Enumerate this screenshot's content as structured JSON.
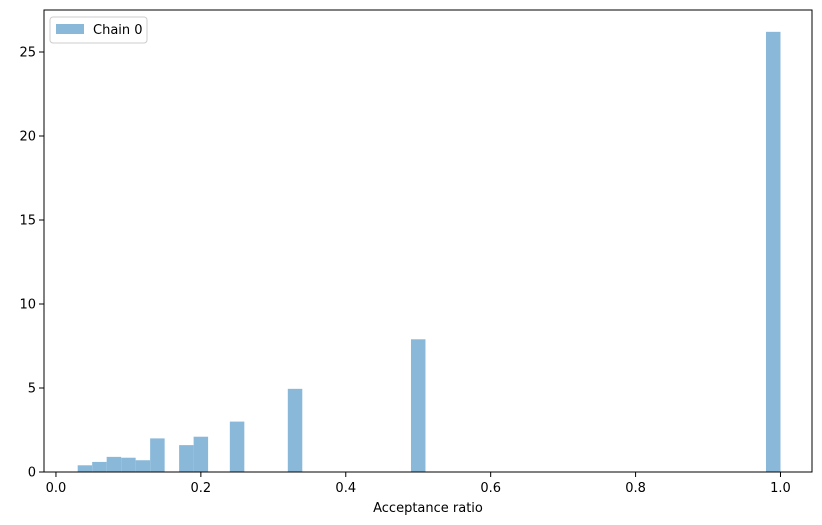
{
  "chart_data": {
    "type": "bar",
    "title": "",
    "xlabel": "Acceptance ratio",
    "ylabel": "",
    "xlim": [
      -0.0165,
      1.0435
    ],
    "ylim": [
      0,
      27.5
    ],
    "xticks": [
      0.0,
      0.2,
      0.4,
      0.6,
      0.8,
      1.0
    ],
    "xtick_labels": [
      "0.0",
      "0.2",
      "0.4",
      "0.6",
      "0.8",
      "1.0"
    ],
    "yticks": [
      0,
      5,
      10,
      15,
      20,
      25
    ],
    "ytick_labels": [
      "0",
      "5",
      "10",
      "15",
      "20",
      "25"
    ],
    "bin_width": 0.02,
    "grid": false,
    "legend_position": "upper-left",
    "series": [
      {
        "name": "Chain 0",
        "color": "#8ab8d9",
        "bins": [
          {
            "x0": 0.03,
            "x1": 0.05,
            "value": 0.4
          },
          {
            "x0": 0.05,
            "x1": 0.07,
            "value": 0.6
          },
          {
            "x0": 0.07,
            "x1": 0.09,
            "value": 0.9
          },
          {
            "x0": 0.09,
            "x1": 0.11,
            "value": 0.85
          },
          {
            "x0": 0.11,
            "x1": 0.13,
            "value": 0.7
          },
          {
            "x0": 0.13,
            "x1": 0.15,
            "value": 2.0
          },
          {
            "x0": 0.17,
            "x1": 0.19,
            "value": 1.6
          },
          {
            "x0": 0.19,
            "x1": 0.21,
            "value": 2.1
          },
          {
            "x0": 0.24,
            "x1": 0.26,
            "value": 3.0
          },
          {
            "x0": 0.32,
            "x1": 0.34,
            "value": 4.95
          },
          {
            "x0": 0.49,
            "x1": 0.51,
            "value": 7.9
          },
          {
            "x0": 0.98,
            "x1": 1.0,
            "value": 26.2
          }
        ]
      }
    ]
  }
}
